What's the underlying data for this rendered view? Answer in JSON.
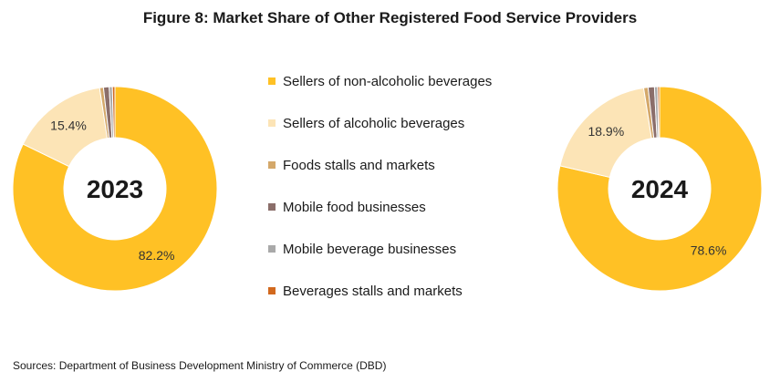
{
  "title": "Figure 8: Market Share of Other Registered Food Service Providers",
  "source": "Sources:  Department of Business Development Ministry of Commerce (DBD)",
  "legend": [
    {
      "label": "Sellers of non-alcoholic beverages",
      "color": "#FFC125"
    },
    {
      "label": "Sellers of alcoholic beverages",
      "color": "#FCE4B6"
    },
    {
      "label": "Foods stalls and markets",
      "color": "#D4A86A"
    },
    {
      "label": "Mobile food businesses",
      "color": "#8B6E6A"
    },
    {
      "label": "Mobile beverage businesses",
      "color": "#A9A9A9"
    },
    {
      "label": "Beverages stalls and markets",
      "color": "#D2691E"
    }
  ],
  "chart_data": [
    {
      "type": "pie",
      "title": "2023",
      "categories": [
        "Sellers of non-alcoholic beverages",
        "Sellers of alcoholic beverages",
        "Foods stalls and markets",
        "Mobile food businesses",
        "Mobile beverage businesses",
        "Beverages stalls and markets"
      ],
      "values": [
        82.2,
        15.4,
        0.6,
        0.9,
        0.5,
        0.4
      ],
      "data_labels": [
        "82.2%",
        "15.4%",
        "",
        "",
        "",
        ""
      ]
    },
    {
      "type": "pie",
      "title": "2024",
      "categories": [
        "Sellers of non-alcoholic beverages",
        "Sellers of alcoholic beverages",
        "Foods stalls and markets",
        "Mobile food businesses",
        "Mobile beverage businesses",
        "Beverages stalls and markets"
      ],
      "values": [
        78.6,
        18.9,
        0.7,
        1.0,
        0.5,
        0.3
      ],
      "data_labels": [
        "78.6%",
        "18.9%",
        "",
        "",
        "",
        ""
      ]
    }
  ]
}
